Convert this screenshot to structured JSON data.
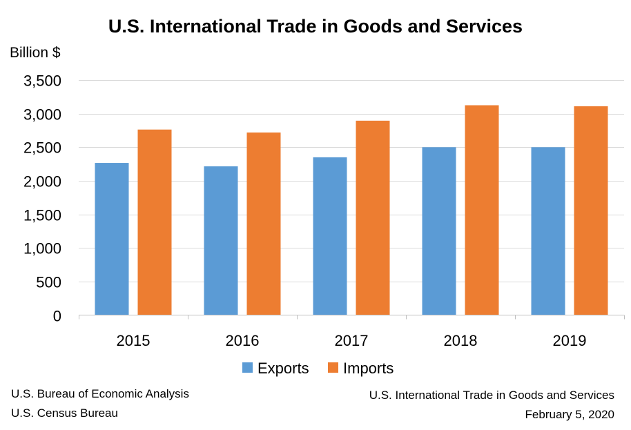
{
  "chart_data": {
    "type": "bar",
    "title": "U.S. International Trade in Goods and Services",
    "ylabel": "Billion $",
    "xlabel": "",
    "categories": [
      "2015",
      "2016",
      "2017",
      "2018",
      "2019"
    ],
    "series": [
      {
        "name": "Exports",
        "color": "#5B9BD5",
        "values": [
          2266,
          2215,
          2350,
          2500,
          2500
        ]
      },
      {
        "name": "Imports",
        "color": "#ED7D31",
        "values": [
          2763,
          2719,
          2895,
          3125,
          3110
        ]
      }
    ],
    "ylim": [
      0,
      3500
    ],
    "yticks": [
      0,
      500,
      1000,
      1500,
      2000,
      2500,
      3000,
      3500
    ],
    "ytick_labels": [
      "0",
      "500",
      "1,000",
      "1,500",
      "2,000",
      "2,500",
      "3,000",
      "3,500"
    ],
    "grid": true,
    "legend_position": "bottom-center"
  },
  "footer": {
    "source_line1": "U.S. Bureau of Economic Analysis",
    "source_line2": "U.S. Census Bureau",
    "release_title": "U.S. International Trade in Goods and Services",
    "release_date": "February 5, 2020"
  }
}
